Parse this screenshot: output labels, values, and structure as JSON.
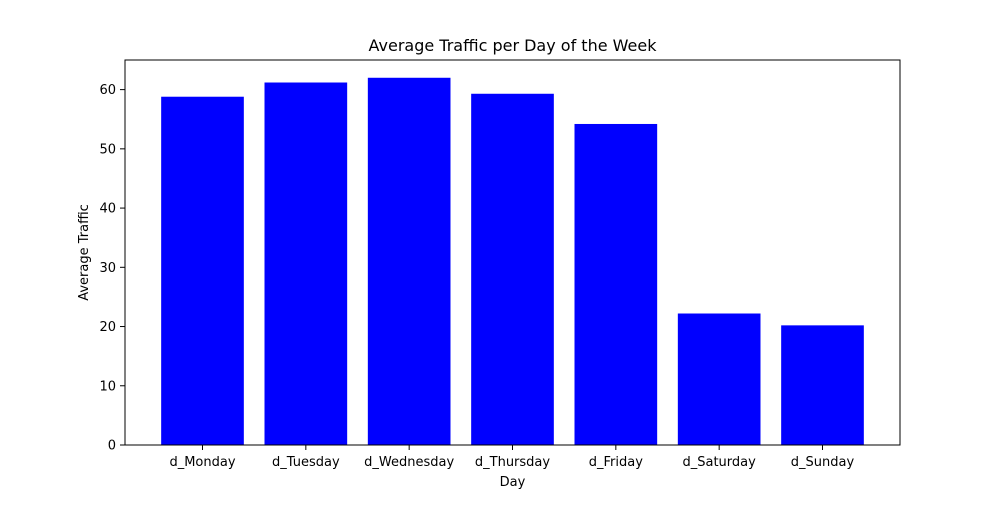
{
  "chart_data": {
    "type": "bar",
    "title": "Average Traffic per Day of the Week",
    "xlabel": "Day",
    "ylabel": "Average Traffic",
    "categories": [
      "d_Monday",
      "d_Tuesday",
      "d_Wednesday",
      "d_Thursday",
      "d_Friday",
      "d_Saturday",
      "d_Sunday"
    ],
    "values": [
      58.8,
      61.2,
      62.0,
      59.3,
      54.2,
      22.2,
      20.2
    ],
    "ylim": [
      0,
      65
    ],
    "yticks": [
      0,
      10,
      20,
      30,
      40,
      50,
      60
    ],
    "bar_color": "#0000ff",
    "grid": false,
    "legend": "none"
  }
}
